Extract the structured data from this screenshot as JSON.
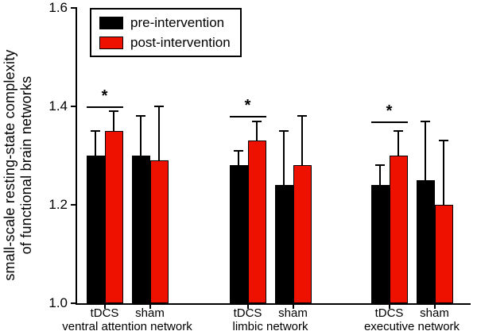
{
  "figure": {
    "background": "#ffffff",
    "axis_color": "#000000"
  },
  "chart_data": {
    "type": "bar",
    "title": "",
    "xlabel": "",
    "ylabel": "small-scale resting-state complexity of functional brain networks",
    "ylabel_lines": [
      "small-scale resting-state complexity",
      "of functional brain networks"
    ],
    "ylim": [
      1.0,
      1.6
    ],
    "yticks": [
      1.0,
      1.2,
      1.4,
      1.6
    ],
    "ytick_labels": [
      "1.0",
      "1.2",
      "1.4",
      "1.6"
    ],
    "grid": false,
    "legend_position": "top-left",
    "significance_marker": "*",
    "series": [
      {
        "name": "pre-intervention",
        "color": "#000000"
      },
      {
        "name": "post-intervention",
        "color": "#ee1100"
      }
    ],
    "groups": [
      {
        "label": "ventral attention network",
        "conditions": [
          {
            "label": "tDCS",
            "values": [
              1.3,
              1.35
            ],
            "errors": [
              0.05,
              0.04
            ],
            "significant": true,
            "sig_y": 1.4
          },
          {
            "label": "sham",
            "values": [
              1.3,
              1.29
            ],
            "errors": [
              0.08,
              0.11
            ],
            "significant": false
          }
        ]
      },
      {
        "label": "limbic network",
        "conditions": [
          {
            "label": "tDCS",
            "values": [
              1.28,
              1.33
            ],
            "errors": [
              0.03,
              0.04
            ],
            "significant": true,
            "sig_y": 1.38
          },
          {
            "label": "sham",
            "values": [
              1.24,
              1.28
            ],
            "errors": [
              0.11,
              0.1
            ],
            "significant": false
          }
        ]
      },
      {
        "label": "executive network",
        "conditions": [
          {
            "label": "tDCS",
            "values": [
              1.24,
              1.3
            ],
            "errors": [
              0.04,
              0.05
            ],
            "significant": true,
            "sig_y": 1.37
          },
          {
            "label": "sham",
            "values": [
              1.25,
              1.2
            ],
            "errors": [
              0.12,
              0.13
            ],
            "significant": false
          }
        ]
      }
    ]
  }
}
